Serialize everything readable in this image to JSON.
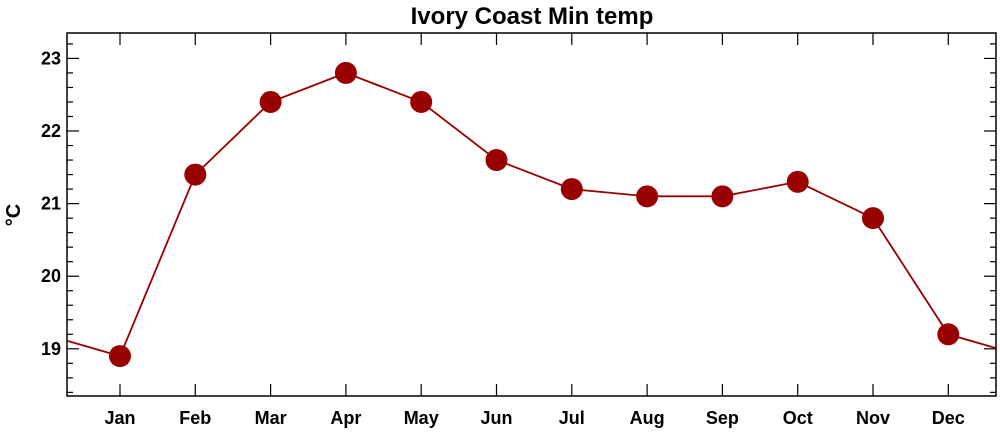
{
  "chart_data": {
    "type": "line",
    "title": "Ivory Coast Min temp",
    "xlabel": "",
    "ylabel": "°C",
    "categories": [
      "Jan",
      "Feb",
      "Mar",
      "Apr",
      "May",
      "Jun",
      "Jul",
      "Aug",
      "Sep",
      "Oct",
      "Nov",
      "Dec"
    ],
    "series": [
      {
        "values": [
          18.9,
          21.4,
          22.4,
          22.8,
          22.4,
          21.6,
          21.2,
          21.1,
          21.1,
          21.3,
          20.8,
          19.2
        ]
      }
    ],
    "ylim": [
      18.35,
      23.35
    ],
    "yticks": [
      19,
      20,
      21,
      22,
      23
    ],
    "yticklabels": [
      "19",
      "20",
      "21",
      "22",
      "23"
    ],
    "grid": false,
    "legend": "none",
    "wraparound": true,
    "colors": {
      "series": "#990000",
      "axis": "#000000",
      "background": "#ffffff"
    }
  }
}
